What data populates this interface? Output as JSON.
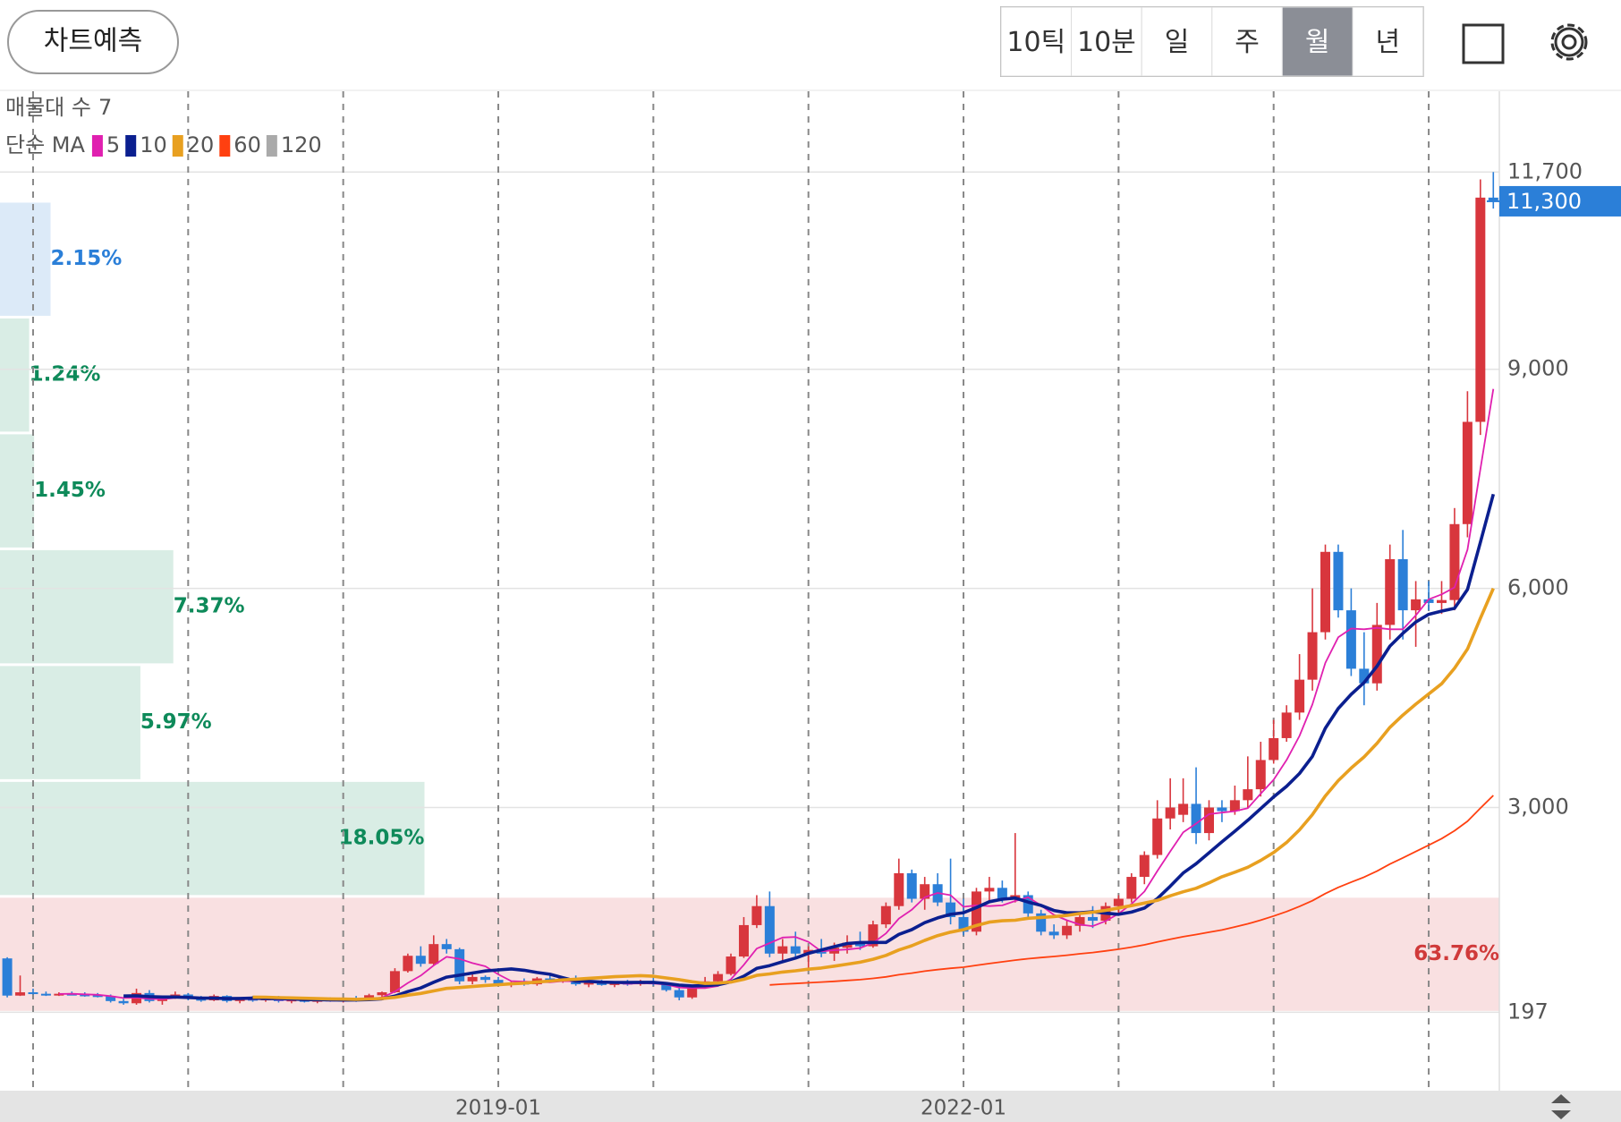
{
  "toolbar": {
    "predict": "차트예측",
    "periods": [
      "10틱",
      "10분",
      "일",
      "주",
      "월",
      "년"
    ],
    "selected": 4
  },
  "chart_data": {
    "type": "candlestick",
    "categories": [
      "2015-11",
      "2015-12",
      "2016-01",
      "2016-02",
      "2016-03",
      "2016-04",
      "2016-05",
      "2016-06",
      "2016-07",
      "2016-08",
      "2016-09",
      "2016-10",
      "2016-11",
      "2016-12",
      "2017-01",
      "2017-02",
      "2017-03",
      "2017-04",
      "2017-05",
      "2017-06",
      "2017-07",
      "2017-08",
      "2017-09",
      "2017-10",
      "2017-11",
      "2017-12",
      "2018-01",
      "2018-02",
      "2018-03",
      "2018-04",
      "2018-05",
      "2018-06",
      "2018-07",
      "2018-08",
      "2018-09",
      "2018-10",
      "2018-11",
      "2018-12",
      "2019-01",
      "2019-02",
      "2019-03",
      "2019-04",
      "2019-05",
      "2019-06",
      "2019-07",
      "2019-08",
      "2019-09",
      "2019-10",
      "2019-11",
      "2019-12",
      "2020-01",
      "2020-02",
      "2020-03",
      "2020-04",
      "2020-05",
      "2020-06",
      "2020-07",
      "2020-08",
      "2020-09",
      "2020-10",
      "2020-11",
      "2020-12",
      "2021-01",
      "2021-02",
      "2021-03",
      "2021-04",
      "2021-05",
      "2021-06",
      "2021-07",
      "2021-08",
      "2021-09",
      "2021-10",
      "2021-11",
      "2021-12",
      "2022-01",
      "2022-02",
      "2022-03",
      "2022-04",
      "2022-05",
      "2022-06",
      "2022-07",
      "2022-08",
      "2022-09",
      "2022-10",
      "2022-11",
      "2022-12",
      "2023-01",
      "2023-02",
      "2023-03",
      "2023-04",
      "2023-05",
      "2023-06",
      "2023-07",
      "2023-08",
      "2023-09",
      "2023-10",
      "2023-11",
      "2023-12",
      "2024-01",
      "2024-02",
      "2024-03",
      "2024-04",
      "2024-05",
      "2024-06",
      "2024-07",
      "2024-08",
      "2024-09",
      "2024-10",
      "2024-11",
      "2024-12",
      "2025-01",
      "2025-02",
      "2025-03",
      "2025-04",
      "2025-05",
      "2025-06"
    ],
    "ohlc": [
      [
        934,
        950,
        400,
        425
      ],
      [
        425,
        700,
        420,
        470
      ],
      [
        470,
        520,
        440,
        450
      ],
      [
        450,
        480,
        420,
        440
      ],
      [
        440,
        470,
        420,
        450
      ],
      [
        450,
        480,
        430,
        440
      ],
      [
        440,
        470,
        410,
        430
      ],
      [
        430,
        460,
        400,
        420
      ],
      [
        420,
        440,
        330,
        350
      ],
      [
        350,
        380,
        300,
        320
      ],
      [
        320,
        520,
        300,
        460
      ],
      [
        460,
        500,
        330,
        350
      ],
      [
        350,
        420,
        300,
        400
      ],
      [
        400,
        480,
        380,
        440
      ],
      [
        440,
        460,
        360,
        380
      ],
      [
        380,
        420,
        340,
        360
      ],
      [
        360,
        440,
        350,
        420
      ],
      [
        420,
        430,
        330,
        350
      ],
      [
        350,
        400,
        320,
        380
      ],
      [
        380,
        420,
        340,
        360
      ],
      [
        360,
        400,
        340,
        390
      ],
      [
        390,
        420,
        330,
        350
      ],
      [
        350,
        380,
        320,
        370
      ],
      [
        370,
        390,
        330,
        340
      ],
      [
        340,
        380,
        320,
        370
      ],
      [
        370,
        400,
        340,
        350
      ],
      [
        350,
        400,
        330,
        380
      ],
      [
        380,
        420,
        340,
        360
      ],
      [
        360,
        450,
        350,
        430
      ],
      [
        430,
        480,
        400,
        470
      ],
      [
        470,
        800,
        460,
        760
      ],
      [
        760,
        1000,
        740,
        970
      ],
      [
        970,
        1100,
        820,
        860
      ],
      [
        860,
        1250,
        840,
        1130
      ],
      [
        1130,
        1200,
        1000,
        1060
      ],
      [
        1060,
        1080,
        580,
        620
      ],
      [
        620,
        720,
        580,
        680
      ],
      [
        680,
        700,
        600,
        640
      ],
      [
        640,
        680,
        560,
        580
      ],
      [
        580,
        620,
        540,
        600
      ],
      [
        600,
        660,
        560,
        580
      ],
      [
        580,
        680,
        560,
        660
      ],
      [
        660,
        700,
        600,
        620
      ],
      [
        620,
        680,
        600,
        660
      ],
      [
        660,
        700,
        560,
        580
      ],
      [
        580,
        620,
        540,
        600
      ],
      [
        600,
        640,
        560,
        570
      ],
      [
        570,
        620,
        540,
        600
      ],
      [
        600,
        640,
        560,
        580
      ],
      [
        580,
        640,
        560,
        620
      ],
      [
        620,
        680,
        560,
        580
      ],
      [
        580,
        600,
        480,
        500
      ],
      [
        500,
        560,
        360,
        400
      ],
      [
        400,
        560,
        380,
        540
      ],
      [
        540,
        680,
        520,
        620
      ],
      [
        620,
        760,
        600,
        720
      ],
      [
        720,
        1000,
        700,
        960
      ],
      [
        960,
        1500,
        940,
        1390
      ],
      [
        1390,
        1800,
        1350,
        1650
      ],
      [
        1650,
        1850,
        950,
        1000
      ],
      [
        1000,
        1200,
        900,
        1100
      ],
      [
        1100,
        1300,
        950,
        1000
      ],
      [
        1000,
        1100,
        780,
        1050
      ],
      [
        1050,
        1200,
        950,
        1000
      ],
      [
        1000,
        1150,
        900,
        1080
      ],
      [
        1080,
        1250,
        1000,
        1150
      ],
      [
        1150,
        1300,
        1050,
        1100
      ],
      [
        1100,
        1450,
        1080,
        1400
      ],
      [
        1400,
        1700,
        1350,
        1650
      ],
      [
        1650,
        2300,
        1600,
        2100
      ],
      [
        2100,
        2150,
        1700,
        1750
      ],
      [
        1750,
        2050,
        1600,
        1950
      ],
      [
        1950,
        2100,
        1650,
        1700
      ],
      [
        1700,
        2300,
        1400,
        1500
      ],
      [
        1500,
        1750,
        1250,
        1300
      ],
      [
        1300,
        1900,
        1250,
        1850
      ],
      [
        1850,
        2050,
        1700,
        1900
      ],
      [
        1900,
        2000,
        1700,
        1750
      ],
      [
        1750,
        2650,
        1700,
        1800
      ],
      [
        1800,
        1850,
        1500,
        1550
      ],
      [
        1550,
        1600,
        1250,
        1300
      ],
      [
        1300,
        1400,
        1200,
        1250
      ],
      [
        1250,
        1450,
        1200,
        1380
      ],
      [
        1380,
        1550,
        1300,
        1500
      ],
      [
        1500,
        1650,
        1350,
        1450
      ],
      [
        1450,
        1700,
        1400,
        1650
      ],
      [
        1650,
        1800,
        1550,
        1750
      ],
      [
        1750,
        2100,
        1700,
        2050
      ],
      [
        2050,
        2400,
        1950,
        2350
      ],
      [
        2350,
        3100,
        2300,
        2850
      ],
      [
        2850,
        3400,
        2700,
        3000
      ],
      [
        2900,
        3400,
        2800,
        3050
      ],
      [
        3050,
        3550,
        2500,
        2650
      ],
      [
        2650,
        3100,
        2550,
        3000
      ],
      [
        3000,
        3100,
        2800,
        2950
      ],
      [
        2950,
        3300,
        2900,
        3100
      ],
      [
        3100,
        3700,
        3000,
        3250
      ],
      [
        3250,
        3900,
        3150,
        3650
      ],
      [
        3650,
        4200,
        3600,
        3950
      ],
      [
        3950,
        4400,
        3900,
        4300
      ],
      [
        4300,
        5100,
        4200,
        4750
      ],
      [
        4750,
        6000,
        4600,
        5400
      ],
      [
        5400,
        6600,
        5300,
        6500
      ],
      [
        6500,
        6600,
        5600,
        5700
      ],
      [
        5700,
        6000,
        4800,
        4900
      ],
      [
        4900,
        5400,
        4400,
        4700
      ],
      [
        4700,
        5800,
        4600,
        5500
      ],
      [
        5500,
        6600,
        5300,
        6400
      ],
      [
        6400,
        6800,
        5300,
        5700
      ],
      [
        5700,
        6100,
        5200,
        5850
      ],
      [
        5850,
        6100,
        5700,
        5800
      ],
      [
        5800,
        6100,
        5650,
        5840
      ],
      [
        5840,
        7100,
        5700,
        6880
      ],
      [
        6880,
        8700,
        6700,
        8280
      ],
      [
        8280,
        11600,
        8100,
        11350
      ],
      [
        11350,
        11700,
        11200,
        11300
      ]
    ],
    "up_color": "#d8363d",
    "down_color": "#2b7fd8",
    "ylim": [
      -877,
      12806
    ],
    "yticks": [
      197,
      {
        "value": 3000,
        "label": "3,000"
      },
      {
        "value": 6000,
        "label": "6,000"
      },
      {
        "value": 9000,
        "label": "9,000"
      },
      {
        "value": 11700,
        "label": "11,700"
      }
    ],
    "grid": true,
    "xgrid": [
      "2016-01",
      "2017-01",
      "2018-01",
      "2019-01",
      "2020-01",
      "2021-01",
      "2022-01",
      "2023-01",
      "2024-01",
      "2025-01"
    ],
    "xticks": [
      "2019-01",
      "2022-01"
    ],
    "last_price": {
      "value": 11300,
      "label": "11,300",
      "color": "#2b7fd8"
    },
    "ma": {
      "label": "단순 MA",
      "periods": [
        5,
        10,
        20,
        60,
        120
      ],
      "colors": [
        "#e020b0",
        "#0b1f8f",
        "#e8a020",
        "#ff4010",
        "#aaaaaa"
      ]
    },
    "volume_profile": {
      "label": "매물대 수",
      "count": 7,
      "range": [
        197,
        11300
      ],
      "values": [
        63.76,
        18.05,
        5.97,
        7.37,
        1.45,
        1.24,
        2.15
      ],
      "value_labels": [
        "63.76%",
        "18.05%",
        "5.97%",
        "7.37%",
        "1.45%",
        "1.24%",
        "2.15%"
      ],
      "fills": [
        "#f9e0e1",
        "#d9ede5",
        "#d9ede5",
        "#d9ede5",
        "#d9ede5",
        "#d9ede5",
        "#dceaf8"
      ],
      "label_colors": [
        "#d03a3a",
        "#0e8a5a",
        "#0e8a5a",
        "#0e8a5a",
        "#0e8a5a",
        "#0e8a5a",
        "#2b7fd8"
      ]
    }
  }
}
